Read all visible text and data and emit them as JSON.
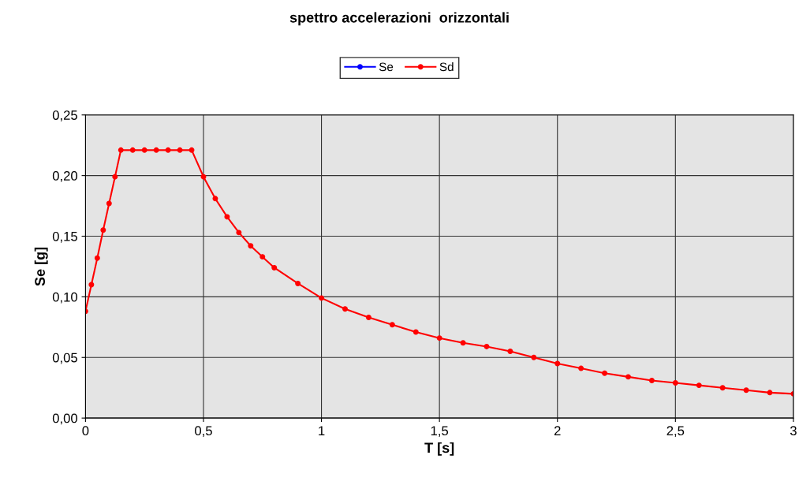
{
  "chart_data": {
    "type": "line",
    "title": "spettro accelerazioni  orizzontali",
    "xlabel": "T [s]",
    "ylabel": "Se [g]",
    "x": [
      0,
      0.025,
      0.05,
      0.075,
      0.1,
      0.125,
      0.15,
      0.2,
      0.25,
      0.3,
      0.35,
      0.4,
      0.45,
      0.5,
      0.55,
      0.6,
      0.65,
      0.7,
      0.75,
      0.8,
      0.9,
      1.0,
      1.1,
      1.2,
      1.3,
      1.4,
      1.5,
      1.6,
      1.7,
      1.8,
      1.9,
      2.0,
      2.1,
      2.2,
      2.3,
      2.4,
      2.5,
      2.6,
      2.7,
      2.8,
      2.9,
      3.0
    ],
    "series": [
      {
        "name": "Se",
        "color": "#0000ff",
        "values": [
          null,
          null,
          null,
          null,
          null,
          null,
          null,
          null,
          null,
          null,
          null,
          null,
          null,
          null,
          null,
          null,
          null,
          null,
          null,
          null,
          null,
          null,
          null,
          null,
          null,
          null,
          null,
          null,
          null,
          null,
          null,
          null,
          null,
          null,
          null,
          null,
          null,
          null,
          null,
          null,
          null,
          null
        ]
      },
      {
        "name": "Sd",
        "color": "#ff0000",
        "values": [
          0.088,
          0.11,
          0.132,
          0.155,
          0.177,
          0.199,
          0.221,
          0.221,
          0.221,
          0.221,
          0.221,
          0.221,
          0.221,
          0.199,
          0.181,
          0.166,
          0.153,
          0.142,
          0.133,
          0.124,
          0.111,
          0.099,
          0.09,
          0.083,
          0.077,
          0.071,
          0.066,
          0.062,
          0.059,
          0.055,
          0.05,
          0.045,
          0.041,
          0.037,
          0.034,
          0.031,
          0.029,
          0.027,
          0.025,
          0.023,
          0.021,
          0.02
        ]
      }
    ],
    "xlim": [
      0,
      3
    ],
    "xticks": [
      0,
      {
        "value": 0.5,
        "label": "0,5"
      },
      1,
      {
        "value": 1.5,
        "label": "1,5"
      },
      2,
      {
        "value": 2.5,
        "label": "2,5"
      },
      3
    ],
    "ylim": [
      0,
      0.25
    ],
    "yticks": [
      {
        "value": 0,
        "label": "0,00"
      },
      {
        "value": 0.05,
        "label": "0,05"
      },
      {
        "value": 0.1,
        "label": "0,10"
      },
      {
        "value": 0.15,
        "label": "0,15"
      },
      {
        "value": 0.2,
        "label": "0,20"
      },
      {
        "value": 0.25,
        "label": "0,25"
      }
    ],
    "grid": true,
    "legend": "top",
    "marker": "circle",
    "line_style": "solid"
  }
}
